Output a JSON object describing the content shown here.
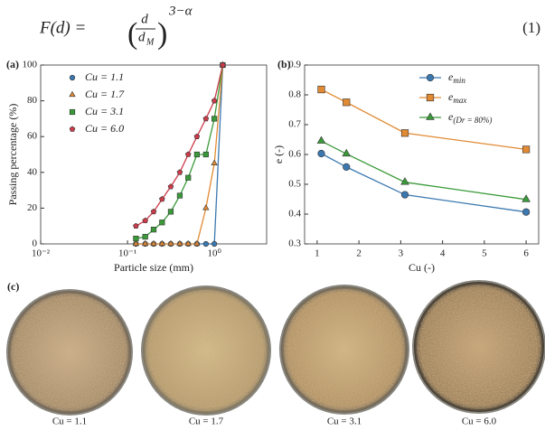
{
  "equation": {
    "lhs": "F(d) =",
    "numerator": "d",
    "denominator": "d",
    "denominator_sub": "M",
    "exponent": "3−α",
    "number": "(1)"
  },
  "chart_data": [
    {
      "type": "line",
      "panel": "(a)",
      "xlabel": "Particle size (mm)",
      "ylabel": "Passing percentage (%)",
      "xscale": "log",
      "xlim": [
        0.01,
        4
      ],
      "ylim": [
        0,
        100
      ],
      "xticks": [
        {
          "value": 0.01,
          "label": "10⁻²"
        },
        {
          "value": 0.1,
          "label": "10⁻¹"
        },
        {
          "value": 1,
          "label": "10⁰"
        }
      ],
      "yticks": [
        0,
        20,
        40,
        60,
        80,
        100
      ],
      "legend": "upper-left",
      "legend_lines": false,
      "x": [
        0.125,
        0.16,
        0.2,
        0.25,
        0.315,
        0.4,
        0.5,
        0.63,
        0.8,
        1.0,
        1.25
      ],
      "series": [
        {
          "name": "Cu = 1.1",
          "color": "#3b78b0",
          "marker": "circle",
          "values": [
            0,
            0,
            0,
            0,
            0,
            0,
            0,
            0,
            0,
            0,
            100
          ]
        },
        {
          "name": "Cu = 1.7",
          "color": "#e08a34",
          "marker": "triangle",
          "values": [
            0,
            0,
            0,
            0,
            0,
            0,
            0,
            0,
            20,
            45,
            100
          ]
        },
        {
          "name": "Cu = 3.1",
          "color": "#3a9a3a",
          "marker": "square",
          "values": [
            3,
            4,
            8,
            12,
            18,
            27,
            37,
            50,
            50,
            70,
            100
          ]
        },
        {
          "name": "Cu = 6.0",
          "color": "#cc3b4a",
          "marker": "pentagon",
          "values": [
            10,
            13,
            18,
            25,
            32,
            40,
            50,
            60,
            70,
            80,
            100
          ]
        }
      ]
    },
    {
      "type": "line",
      "panel": "(b)",
      "xlabel": "Cu (-)",
      "ylabel": "e (-)",
      "xlim": [
        0.7,
        6.3
      ],
      "ylim": [
        0.3,
        0.9
      ],
      "xticks": [
        1,
        2,
        3,
        4,
        5,
        6
      ],
      "yticks": [
        0.3,
        0.4,
        0.5,
        0.6,
        0.7,
        0.8,
        0.9
      ],
      "legend": "upper-right",
      "legend_lines": true,
      "x": [
        1.1,
        1.7,
        3.1,
        6.0
      ],
      "series": [
        {
          "name": "e",
          "name_sub": "min",
          "color": "#3b78b0",
          "marker": "circle",
          "values": [
            0.603,
            0.558,
            0.465,
            0.407
          ]
        },
        {
          "name": "e",
          "name_sub": "max",
          "color": "#e08a34",
          "marker": "square",
          "values": [
            0.818,
            0.775,
            0.672,
            0.617
          ]
        },
        {
          "name": "e",
          "name_sub": "(Dr = 80%)",
          "color": "#3a9a3a",
          "marker": "triangle",
          "values": [
            0.645,
            0.602,
            0.507,
            0.449
          ]
        }
      ]
    }
  ],
  "photos": {
    "panel": "(c)",
    "labels": [
      "Cu = 1.1",
      "Cu = 1.7",
      "Cu = 3.1",
      "Cu = 6.0"
    ]
  }
}
